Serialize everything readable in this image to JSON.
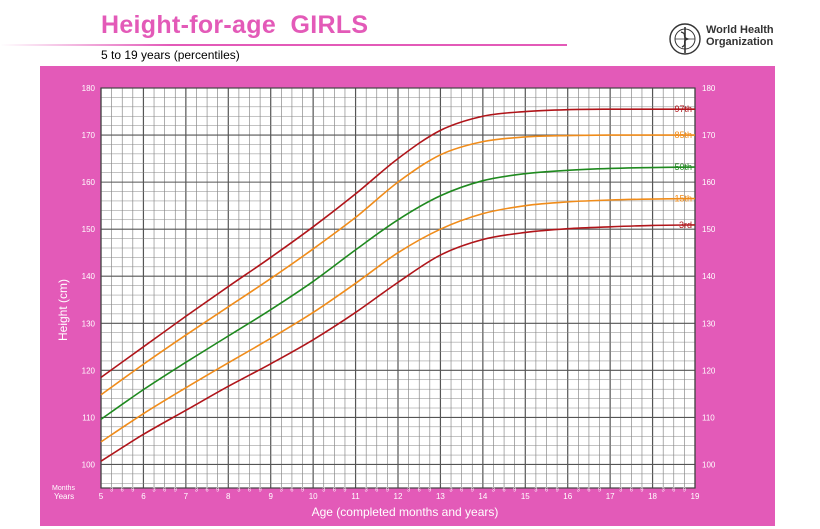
{
  "header": {
    "title": "Height-for-age  GIRLS",
    "subtitle": "5 to 19 years (percentiles)"
  },
  "logo": {
    "line1": "World Health",
    "line2": "Organization"
  },
  "colors": {
    "accent": "#e35ab8",
    "p3": "#b0151a",
    "p15": "#f08c1a",
    "p50": "#1f8a1f",
    "p85": "#f08c1a",
    "p97": "#b0151a"
  },
  "chart_data": {
    "type": "line",
    "xlabel": "Age (completed months and years)",
    "ylabel": "Height (cm)",
    "xlim": [
      5,
      19
    ],
    "ylim": [
      95,
      180
    ],
    "y_ticks": [
      100,
      110,
      120,
      130,
      140,
      150,
      160,
      170,
      180
    ],
    "x_ticks": [
      5,
      6,
      7,
      8,
      9,
      10,
      11,
      12,
      13,
      14,
      15,
      16,
      17,
      18,
      19
    ],
    "x_ticks_labels": [
      "5",
      "6",
      "7",
      "8",
      "9",
      "10",
      "11",
      "12",
      "13",
      "14",
      "15",
      "16",
      "17",
      "18",
      "19"
    ],
    "months_labels": [
      "3",
      "6",
      "9"
    ],
    "row_labels": {
      "months": "Months",
      "years": "Years"
    },
    "grid": true,
    "legend": "labels at right end of curves",
    "x": [
      5,
      6,
      7,
      8,
      9,
      10,
      11,
      12,
      13,
      14,
      15,
      16,
      17,
      18,
      19
    ],
    "series": [
      {
        "name": "97th",
        "color": "#b0151a",
        "values": [
          118.5,
          125.0,
          131.5,
          137.8,
          144.0,
          150.5,
          157.5,
          165.0,
          171.0,
          174.0,
          175.0,
          175.4,
          175.5,
          175.5,
          175.5
        ]
      },
      {
        "name": "85th",
        "color": "#f08c1a",
        "values": [
          114.8,
          121.3,
          127.5,
          133.5,
          139.5,
          145.8,
          152.5,
          160.0,
          165.8,
          168.6,
          169.6,
          169.9,
          170.0,
          170.0,
          170.0
        ]
      },
      {
        "name": "50th",
        "color": "#1f8a1f",
        "values": [
          109.6,
          115.9,
          121.7,
          127.3,
          132.9,
          138.9,
          145.6,
          152.0,
          157.1,
          160.3,
          161.8,
          162.5,
          162.9,
          163.1,
          163.2
        ]
      },
      {
        "name": "15th",
        "color": "#f08c1a",
        "values": [
          104.8,
          110.8,
          116.3,
          121.6,
          126.8,
          132.3,
          138.5,
          145.0,
          150.0,
          153.3,
          155.0,
          155.8,
          156.2,
          156.4,
          156.5
        ]
      },
      {
        "name": "3rd",
        "color": "#b0151a",
        "values": [
          100.7,
          106.4,
          111.5,
          116.6,
          121.4,
          126.5,
          132.3,
          138.7,
          144.5,
          147.8,
          149.3,
          150.1,
          150.5,
          150.8,
          150.9
        ]
      }
    ]
  }
}
